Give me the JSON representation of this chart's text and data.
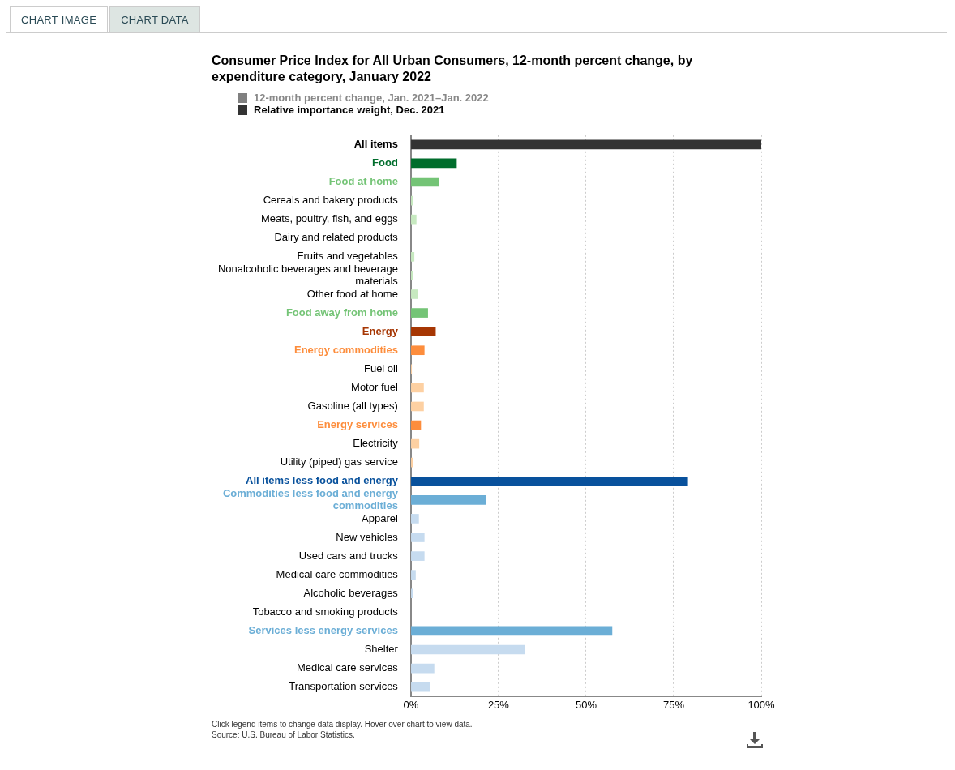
{
  "chart_data": {
    "type": "bar",
    "orientation": "horizontal",
    "title": "Consumer Price Index for All Urban Consumers, 12-month percent change, by expenditure category, January 2022",
    "categories": [
      "All items",
      "Food",
      "Food at home",
      "Cereals and bakery products",
      "Meats, poultry, fish, and eggs",
      "Dairy and related products",
      "Fruits and vegetables",
      "Nonalcoholic beverages and beverage materials",
      "Other food at home",
      "Food away from home",
      "Energy",
      "Energy commodities",
      "Fuel oil",
      "Motor fuel",
      "Gasoline (all types)",
      "Energy services",
      "Electricity",
      "Utility (piped) gas service",
      "All items less food and energy",
      "Commodities less food and energy commodities",
      "Apparel",
      "New vehicles",
      "Used cars and trucks",
      "Medical care commodities",
      "Alcoholic beverages",
      "Tobacco and smoking products",
      "Services less energy services",
      "Shelter",
      "Medical care services",
      "Transportation services"
    ],
    "series": [
      {
        "name": "12-month percent change, Jan. 2021–Jan. 2022",
        "color": "#808080",
        "values": [
          null,
          null,
          null,
          null,
          null,
          null,
          null,
          null,
          null,
          null,
          null,
          null,
          null,
          null,
          null,
          null,
          null,
          null,
          null,
          null,
          null,
          null,
          null,
          null,
          null,
          null,
          null,
          null,
          null,
          null
        ]
      },
      {
        "name": "Relative importance weight, Dec. 2021",
        "color": "#333333",
        "values": [
          100,
          13.0,
          7.9,
          0.6,
          1.5,
          null,
          0.9,
          0.5,
          1.9,
          4.8,
          7.0,
          3.8,
          0.2,
          3.6,
          3.6,
          2.8,
          2.3,
          0.5,
          79.0,
          21.4,
          2.2,
          3.8,
          3.8,
          1.3,
          0.5,
          null,
          57.4,
          32.5,
          6.6,
          5.5
        ],
        "colors": [
          "#333333",
          "#006d2c",
          "#74c476",
          "#c7e9c0",
          "#c7e9c0",
          "#c7e9c0",
          "#c7e9c0",
          "#c7e9c0",
          "#c7e9c0",
          "#74c476",
          "#a63603",
          "#fd8d3c",
          "#fdd0a2",
          "#fdd0a2",
          "#fdd0a2",
          "#fd8d3c",
          "#fdd0a2",
          "#fdd0a2",
          "#08519c",
          "#6baed6",
          "#c6dbef",
          "#c6dbef",
          "#c6dbef",
          "#c6dbef",
          "#c6dbef",
          "#c6dbef",
          "#6baed6",
          "#c6dbef",
          "#c6dbef",
          "#c6dbef"
        ]
      }
    ],
    "xlim": [
      0,
      100
    ],
    "xticks": [
      {
        "value": 0,
        "label": "0%"
      },
      {
        "value": 25,
        "label": "25%"
      },
      {
        "value": 50,
        "label": "50%"
      },
      {
        "value": 75,
        "label": "75%"
      },
      {
        "value": 100,
        "label": "100%"
      }
    ],
    "grid": "x",
    "legend": "top left",
    "annotations": [
      "CHART IMAGE",
      "CHART DATA",
      "Click legend items to change data display. Hover over chart to view data.",
      "Source: U.S. Bureau of Labor Statistics."
    ]
  }
}
